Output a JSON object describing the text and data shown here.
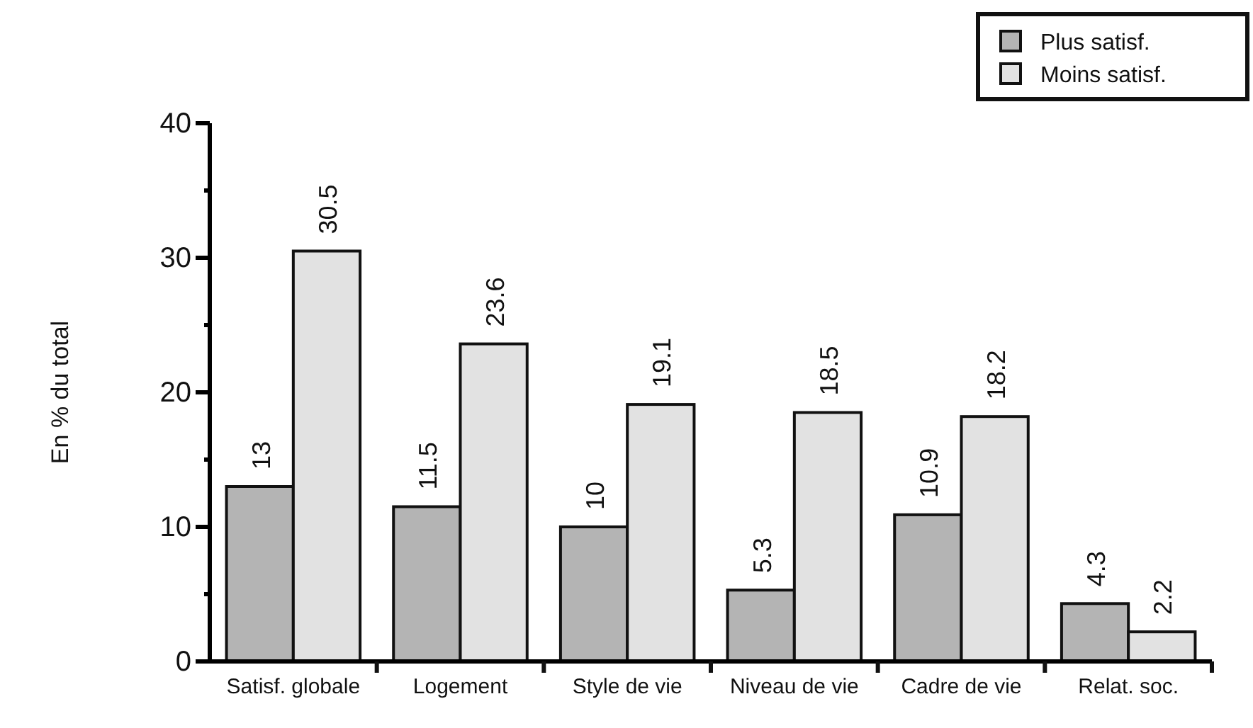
{
  "chart_data": {
    "type": "bar",
    "ylabel": "En % du total",
    "categories": [
      "Satisf. globale",
      "Logement",
      "Style de vie",
      "Niveau de vie",
      "Cadre de vie",
      "Relat. soc."
    ],
    "series": [
      {
        "name": "Plus satisf.",
        "color": "#b4b4b4",
        "values": [
          13,
          11.5,
          10,
          5.3,
          10.9,
          4.3
        ]
      },
      {
        "name": "Moins satisf.",
        "color": "#e2e2e2",
        "values": [
          30.5,
          23.6,
          19.1,
          18.5,
          18.2,
          2.2
        ]
      }
    ],
    "ylim": [
      0,
      40
    ],
    "yticks": [
      0,
      {
        "value": 5,
        "label": null
      },
      10,
      {
        "value": 15,
        "label": null
      },
      20,
      {
        "value": 25,
        "label": null
      },
      30,
      {
        "value": 35,
        "label": null
      },
      40
    ],
    "data_labels": true,
    "grid": false,
    "legend": "top right"
  }
}
